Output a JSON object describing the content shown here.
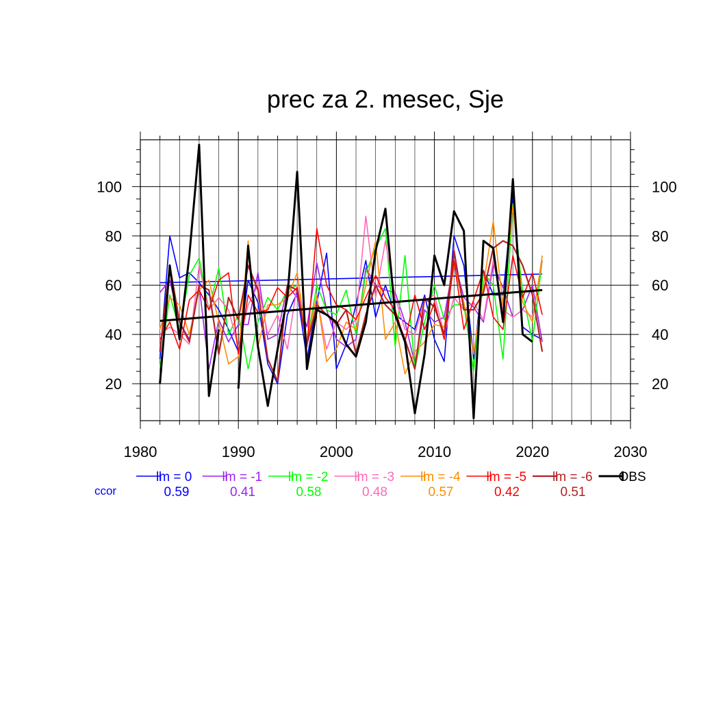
{
  "chart_data": {
    "type": "line",
    "title": "prec za 2. mesec, Sje",
    "xlabel": "",
    "ylabel": "",
    "xlim": [
      1980,
      2030
    ],
    "ylim": [
      5,
      119
    ],
    "x_ticks": [
      1980,
      1990,
      2000,
      2010,
      2020,
      2030
    ],
    "y_ticks": [
      20,
      40,
      60,
      80,
      100
    ],
    "grid": true,
    "legend_position": "bottom",
    "ccor_label": "ccor",
    "x": [
      1982,
      1983,
      1984,
      1985,
      1986,
      1987,
      1988,
      1989,
      1990,
      1991,
      1992,
      1993,
      1994,
      1995,
      1996,
      1997,
      1998,
      1999,
      2000,
      2001,
      2002,
      2003,
      2004,
      2005,
      2006,
      2007,
      2008,
      2009,
      2010,
      2011,
      2012,
      2013,
      2014,
      2015,
      2016,
      2017,
      2018,
      2019,
      2020,
      2021
    ],
    "series": [
      {
        "name": "lm = 0",
        "color": "#0000ff",
        "ccor": "0.59",
        "width": 1.6,
        "values": [
          30,
          80,
          63,
          65,
          61,
          56,
          50,
          42,
          33,
          62,
          53,
          28,
          20,
          48,
          57,
          30,
          53,
          73,
          26,
          36,
          52,
          70,
          47,
          60,
          48,
          45,
          42,
          56,
          38,
          29,
          80,
          68,
          30,
          66,
          56,
          56,
          96,
          43,
          40,
          38
        ],
        "trend": [
          61,
          64.5
        ]
      },
      {
        "name": "lm = -1",
        "color": "#a020f0",
        "ccor": "0.41",
        "width": 1.6,
        "values": [
          57,
          62,
          45,
          38,
          60,
          26,
          46,
          37,
          44,
          44,
          65,
          38,
          40,
          60,
          55,
          43,
          69,
          50,
          38,
          35,
          38,
          67,
          60,
          58,
          57,
          45,
          28,
          50,
          45,
          47,
          70,
          55,
          51,
          45,
          68,
          59,
          47,
          50,
          60,
          37
        ]
      },
      {
        "name": "lm = -2",
        "color": "#00ff00",
        "ccor": "0.58",
        "width": 1.6,
        "values": [
          26,
          56,
          42,
          64,
          71,
          50,
          67,
          40,
          48,
          26,
          45,
          55,
          50,
          58,
          60,
          37,
          60,
          50,
          48,
          58,
          40,
          65,
          75,
          83,
          35,
          72,
          26,
          45,
          60,
          46,
          52,
          52,
          25,
          65,
          60,
          30,
          93,
          57,
          37,
          70
        ]
      },
      {
        "name": "lm = -3",
        "color": "#ff69b4",
        "ccor": "0.48",
        "width": 1.6,
        "values": [
          40,
          43,
          40,
          36,
          68,
          50,
          55,
          50,
          35,
          52,
          60,
          40,
          48,
          34,
          60,
          38,
          55,
          34,
          45,
          42,
          46,
          88,
          55,
          78,
          55,
          42,
          40,
          54,
          56,
          40,
          55,
          50,
          53,
          46,
          70,
          50,
          47,
          50,
          47,
          70
        ]
      },
      {
        "name": "lm = -4",
        "color": "#ff8c00",
        "ccor": "0.57",
        "width": 1.6,
        "values": [
          42,
          55,
          52,
          40,
          58,
          62,
          45,
          28,
          31,
          78,
          35,
          52,
          52,
          55,
          65,
          37,
          56,
          29,
          34,
          45,
          42,
          60,
          78,
          38,
          45,
          24,
          33,
          37,
          44,
          43,
          68,
          53,
          32,
          60,
          86,
          52,
          92,
          53,
          45,
          72
        ]
      },
      {
        "name": "lm = -5",
        "color": "#ff0000",
        "ccor": "0.42",
        "width": 1.6,
        "values": [
          38,
          45,
          34,
          54,
          58,
          50,
          62,
          65,
          32,
          56,
          49,
          50,
          59,
          55,
          59,
          35,
          83,
          60,
          52,
          50,
          46,
          55,
          64,
          55,
          50,
          37,
          56,
          42,
          53,
          38,
          70,
          42,
          54,
          66,
          47,
          42,
          72,
          55,
          65,
          48
        ]
      },
      {
        "name": "lm = -6",
        "color": "#b22222",
        "ccor": "0.51",
        "width": 2.2,
        "values": [
          33,
          68,
          45,
          37,
          60,
          58,
          32,
          55,
          46,
          68,
          58,
          30,
          21,
          60,
          58,
          36,
          52,
          48,
          44,
          50,
          32,
          48,
          60,
          52,
          48,
          38,
          26,
          55,
          51,
          40,
          74,
          50,
          50,
          57,
          75,
          78,
          76,
          68,
          56,
          33
        ]
      },
      {
        "name": "OBS",
        "color": "#000000",
        "ccor": "",
        "width": 3,
        "values": [
          20,
          68,
          38,
          72,
          117,
          15,
          42,
          null,
          18,
          76,
          35,
          11,
          34,
          55,
          106,
          26,
          50,
          48,
          45,
          36,
          31,
          45,
          74,
          91,
          48,
          37,
          8,
          32,
          72,
          60,
          90,
          82,
          6,
          78,
          75,
          45,
          103,
          40,
          37,
          null
        ],
        "trend": [
          45.5,
          58
        ]
      }
    ]
  }
}
